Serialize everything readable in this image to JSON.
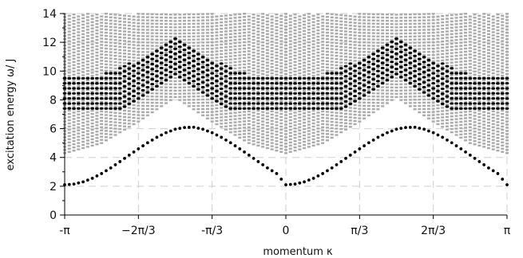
{
  "chart_data": {
    "type": "scatter",
    "title": "",
    "xlabel": "momentum κ",
    "ylabel": "excitation energy ω/ J",
    "xlim": [
      -3.14159,
      3.14159
    ],
    "ylim": [
      0,
      14
    ],
    "x_ticks": [
      {
        "value": -3.14159,
        "label": "-π"
      },
      {
        "value": -2.0944,
        "label": "−2π/3"
      },
      {
        "value": -1.0472,
        "label": "-π/3"
      },
      {
        "value": 0,
        "label": "0"
      },
      {
        "value": 1.0472,
        "label": "π/3"
      },
      {
        "value": 2.0944,
        "label": "2π/3"
      },
      {
        "value": 3.14159,
        "label": "π"
      }
    ],
    "y_ticks": [
      {
        "value": 0,
        "label": "0"
      },
      {
        "value": 2,
        "label": "2"
      },
      {
        "value": 4,
        "label": "4"
      },
      {
        "value": 6,
        "label": "6"
      },
      {
        "value": 8,
        "label": "8"
      },
      {
        "value": 10,
        "label": "10"
      },
      {
        "value": 12,
        "label": "12"
      },
      {
        "value": 14,
        "label": "14"
      }
    ],
    "grid": true,
    "series": [
      {
        "kind": "lowest-mode",
        "color": "#000000",
        "x": [
          -3.1416,
          -3.0107,
          -2.8798,
          -2.7489,
          -2.618,
          -2.4871,
          -2.3562,
          -2.2253,
          -2.0944,
          -1.9635,
          -1.8326,
          -1.7017,
          -1.5708,
          -1.4399,
          -1.309,
          -1.1781,
          -1.0472,
          -0.9163,
          -0.7854,
          -0.6545,
          -0.5236,
          -0.3927,
          -0.2618,
          -0.1309,
          0,
          0.1309,
          0.2618,
          0.3927,
          0.5236,
          0.6545,
          0.7854,
          0.9163,
          1.0472,
          1.1781,
          1.309,
          1.4399,
          1.5708,
          1.7017,
          1.8326,
          1.9635,
          2.0944,
          2.2253,
          2.3562,
          2.4871,
          2.618,
          2.7489,
          2.8798,
          3.0107,
          3.1416
        ],
        "y": [
          2.1,
          2.15,
          2.3,
          2.55,
          2.88,
          3.27,
          3.71,
          4.16,
          4.6,
          5.02,
          5.4,
          5.72,
          5.96,
          6.08,
          6.1,
          5.96,
          5.72,
          5.4,
          5.02,
          4.6,
          4.16,
          3.71,
          3.27,
          2.88,
          2.1,
          2.15,
          2.3,
          2.55,
          2.88,
          3.27,
          3.71,
          4.16,
          4.6,
          5.02,
          5.4,
          5.72,
          5.96,
          6.08,
          6.1,
          5.96,
          5.72,
          5.4,
          5.02,
          4.6,
          4.16,
          3.71,
          3.27,
          2.88,
          2.1
        ]
      },
      {
        "kind": "continuum-lower-edge",
        "color": "#aaaaaa",
        "x": [
          -3.1416,
          -2.618,
          -2.0944,
          -1.5708,
          -1.0472,
          -0.5236,
          0,
          0.5236,
          1.0472,
          1.5708,
          2.0944,
          2.618,
          3.1416
        ],
        "y": [
          4.3,
          5.0,
          6.5,
          8.2,
          6.5,
          5.0,
          4.3,
          5.0,
          6.5,
          8.2,
          6.5,
          5.0,
          4.3
        ]
      },
      {
        "kind": "dark-band-upper-edge",
        "color": "#000000",
        "x": [
          -3.1416,
          -2.618,
          -2.0944,
          -1.5708,
          -1.0472,
          -0.5236,
          0,
          0.5236,
          1.0472,
          1.5708,
          2.0944,
          2.618,
          3.1416
        ],
        "y": [
          9.6,
          9.8,
          10.8,
          12.6,
          10.8,
          9.8,
          9.6,
          9.8,
          10.8,
          12.6,
          10.8,
          9.8,
          9.6
        ]
      }
    ]
  }
}
